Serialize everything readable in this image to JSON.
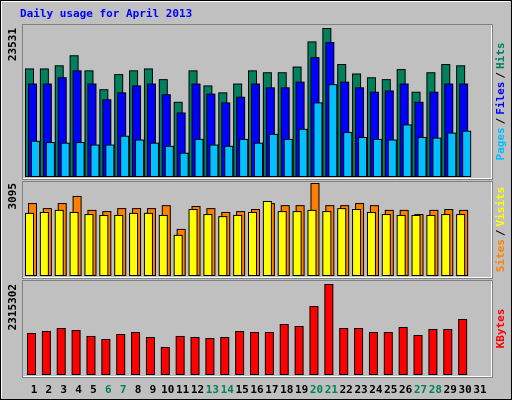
{
  "chart_data": {
    "type": "bar",
    "title": "Daily usage for April 2013",
    "categories": [
      "1",
      "2",
      "3",
      "4",
      "5",
      "6",
      "7",
      "8",
      "9",
      "10",
      "11",
      "12",
      "13",
      "14",
      "15",
      "16",
      "17",
      "18",
      "19",
      "20",
      "21",
      "22",
      "23",
      "24",
      "25",
      "26",
      "27",
      "28",
      "29",
      "30",
      "31"
    ],
    "category_color": "#000000",
    "weekend_color": "#00805c",
    "weekends": [
      5,
      6,
      12,
      13,
      19,
      20,
      26,
      27
    ],
    "legend_separator": "/",
    "panels": [
      {
        "ylim": [
          0,
          23531
        ],
        "yticks": [
          23531
        ],
        "series": [
          {
            "name": "Pages",
            "color": "#00c0ff",
            "values": [
              5600,
              5400,
              5300,
              5400,
              5000,
              5000,
              6400,
              5800,
              5300,
              4800,
              3700,
              5900,
              5000,
              4800,
              5900,
              5300,
              6700,
              5900,
              7500,
              11700,
              14600,
              7000,
              6200,
              5900,
              5800,
              8200,
              6200,
              6100,
              6900,
              7200,
              null
            ]
          },
          {
            "name": "Files",
            "color": "#0000ff",
            "values": [
              14700,
              14700,
              15700,
              16800,
              14700,
              12200,
              13300,
              14400,
              14700,
              13000,
              10100,
              14700,
              13100,
              11700,
              12600,
              14700,
              14100,
              14100,
              15000,
              18900,
              21300,
              15000,
              14100,
              13400,
              13600,
              14700,
              11800,
              13400,
              14700,
              14700,
              null
            ]
          },
          {
            "name": "Hits",
            "color": "#00805c",
            "values": [
              17100,
              17100,
              17600,
              19200,
              16800,
              13800,
              16200,
              16800,
              17100,
              15400,
              11800,
              16800,
              14400,
              13300,
              14700,
              16800,
              16500,
              16500,
              17400,
              21400,
              23531,
              17800,
              16300,
              15700,
              15400,
              17000,
              13400,
              16500,
              17800,
              17600,
              null
            ]
          }
        ]
      },
      {
        "ylim": [
          0,
          3095
        ],
        "yticks": [
          3095
        ],
        "series": [
          {
            "name": "Sites",
            "color": "#ff8000",
            "values": [
              2420,
              2250,
              2420,
              2660,
              2190,
              2150,
              2250,
              2250,
              2250,
              2350,
              1550,
              2320,
              2250,
              2120,
              2150,
              2220,
              2420,
              2350,
              2350,
              3095,
              2350,
              2350,
              2420,
              2350,
              2190,
              2190,
              2050,
              2190,
              2220,
              2190,
              null
            ]
          },
          {
            "name": "Visits",
            "color": "#ffff00",
            "values": [
              2090,
              2120,
              2190,
              2120,
              2050,
              2020,
              2020,
              2090,
              2090,
              2020,
              1350,
              2220,
              2050,
              1980,
              2020,
              2120,
              2490,
              2150,
              2150,
              2190,
              2150,
              2250,
              2220,
              2120,
              2050,
              2020,
              2020,
              2020,
              2050,
              2050,
              null
            ]
          }
        ]
      },
      {
        "ylim": [
          0,
          2315302
        ],
        "yticks": [
          2315302
        ],
        "series": [
          {
            "name": "KBytes",
            "color": "#ff0000",
            "values": [
              1055000,
              1106000,
              1183000,
              1132000,
              978000,
              900000,
              1029000,
              1080000,
              952000,
              695000,
              978000,
              952000,
              926000,
              952000,
              1106000,
              1080000,
              1080000,
              1286000,
              1235000,
              1749000,
              2315302,
              1183000,
              1183000,
              1080000,
              1080000,
              1209000,
              1003000,
              1158000,
              1158000,
              1415000,
              null
            ]
          }
        ]
      }
    ]
  }
}
